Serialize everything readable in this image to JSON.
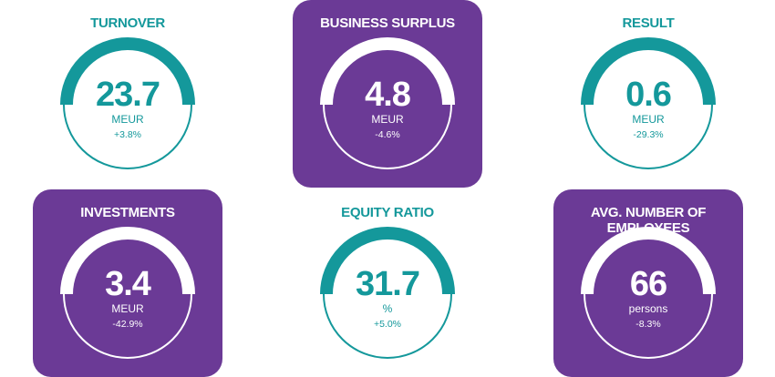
{
  "kpis": [
    {
      "title": "TURNOVER",
      "value": "23.7",
      "unit": "MEUR",
      "change": "+3.8%",
      "style": "plain"
    },
    {
      "title": "BUSINESS SURPLUS",
      "value": "4.8",
      "unit": "MEUR",
      "change": "-4.6%",
      "style": "purple"
    },
    {
      "title": "RESULT",
      "value": "0.6",
      "unit": "MEUR",
      "change": "-29.3%",
      "style": "plain"
    },
    {
      "title": "INVESTMENTS",
      "value": "3.4",
      "unit": "MEUR",
      "change": "-42.9%",
      "style": "purple"
    },
    {
      "title": "EQUITY RATIO",
      "value": "31.7",
      "unit": "%",
      "change": "+5.0%",
      "style": "plain"
    },
    {
      "title": "AVG. NUMBER OF EMPLOYEES",
      "value": "66",
      "unit": "persons",
      "change": "-8.3%",
      "style": "purple"
    }
  ],
  "colors": {
    "teal": "#14989b",
    "purple": "#6b3a96",
    "white": "#ffffff"
  }
}
